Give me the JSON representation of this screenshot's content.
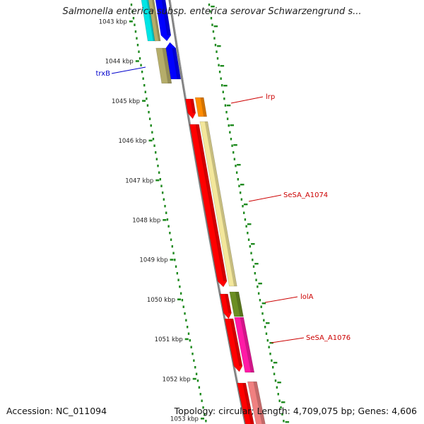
{
  "title": "Salmonella enterica subsp. enterica serovar Schwarzengrund s...",
  "footer": {
    "accession": "Accession: NC_011094",
    "summary": "Topology: circular; Length: 4,709,075 bp; Genes: 4,606"
  },
  "ticks": [
    "1043 kbp",
    "1044 kbp",
    "1045 kbp",
    "1046 kbp",
    "1047 kbp",
    "1048 kbp",
    "1049 kbp",
    "1050 kbp",
    "1051 kbp",
    "1052 kbp",
    "1053 kbp"
  ],
  "genes": [
    {
      "name": "trxB",
      "color": "#0000cc"
    },
    {
      "name": "lrp",
      "color": "#cc0000"
    },
    {
      "name": "SeSA_A1074",
      "color": "#cc0000"
    },
    {
      "name": "lolA",
      "color": "#cc0000"
    },
    {
      "name": "SeSA_A1076",
      "color": "#cc0000"
    }
  ],
  "colors": {
    "backbone": "#808080",
    "tick": "#1f8a1f",
    "red": "#ff0000",
    "orange": "#ff8c00",
    "pale_yellow": "#f3e79b",
    "olive": "#6b8e23",
    "magenta": "#ff1aa6",
    "blue": "#0000ff",
    "khaki": "#b5ad6a",
    "cyan": "#00e5e5",
    "salmon": "#f08080"
  }
}
